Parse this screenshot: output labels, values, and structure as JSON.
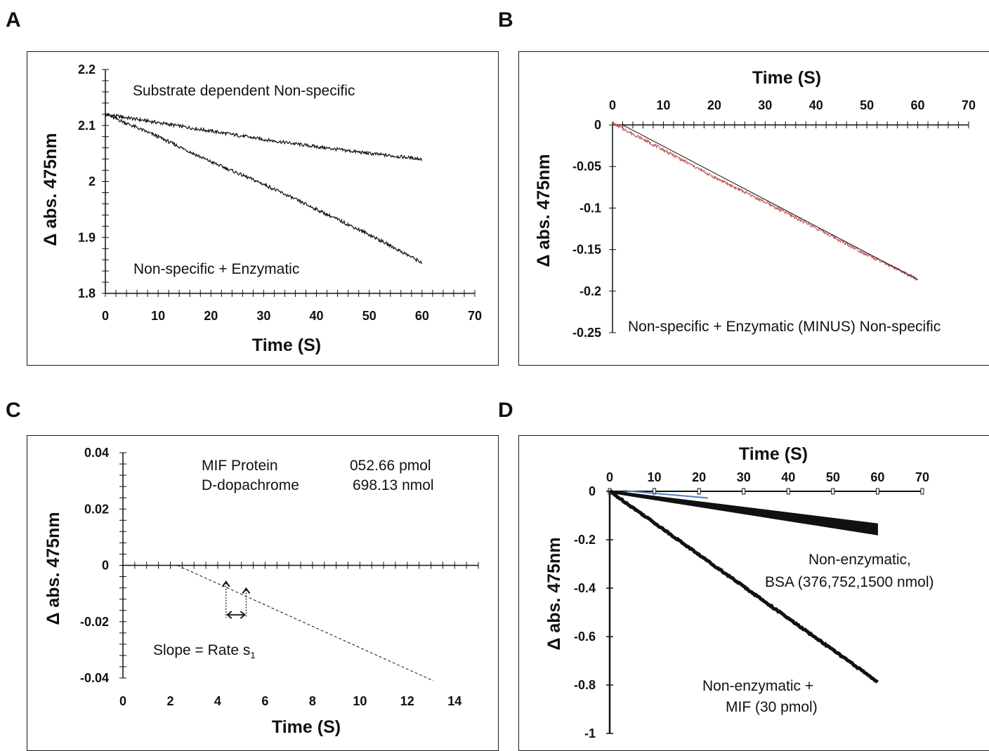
{
  "panels": {
    "A": {
      "letter": "A"
    },
    "B": {
      "letter": "B"
    },
    "C": {
      "letter": "C"
    },
    "D": {
      "letter": "D"
    }
  },
  "chart_data": [
    {
      "panel": "A",
      "type": "line",
      "xlabel": "Time (S)",
      "ylabel": "Δ abs. 475nm",
      "xlim": [
        0,
        70
      ],
      "ylim": [
        1.8,
        2.2
      ],
      "xticks": [
        0,
        10,
        20,
        30,
        40,
        50,
        60,
        70
      ],
      "yticks": [
        1.8,
        1.9,
        2,
        2.1,
        2.2
      ],
      "x_minor_step": 2,
      "y_minor_step": 0.02,
      "annotations": [
        "Substrate dependent Non-specific",
        "Non-specific + Enzymatic"
      ],
      "series": [
        {
          "x": [
            0,
            10,
            20,
            30,
            40,
            50,
            60
          ],
          "values": [
            2.12,
            2.105,
            2.09,
            2.075,
            2.062,
            2.05,
            2.04
          ],
          "color": "#111111"
        },
        {
          "x": [
            0,
            10,
            20,
            30,
            40,
            50,
            60
          ],
          "values": [
            2.12,
            2.08,
            2.035,
            1.995,
            1.95,
            1.905,
            1.855
          ],
          "color": "#111111"
        }
      ]
    },
    {
      "panel": "B",
      "type": "line",
      "xlabel": "Time (S)",
      "ylabel": "Δ abs. 475nm",
      "xlim": [
        0,
        70
      ],
      "ylim": [
        -0.25,
        0
      ],
      "xticks": [
        0,
        10,
        20,
        30,
        40,
        50,
        60,
        70
      ],
      "yticks": [
        0,
        -0.05,
        -0.1,
        -0.15,
        -0.2,
        -0.25
      ],
      "x_minor_step": 2,
      "annotations": [
        "Non-specific + Enzymatic (MINUS) Non-specific"
      ],
      "series": [
        {
          "x": [
            0,
            10,
            20,
            30,
            40,
            50,
            60
          ],
          "values": [
            0.002,
            -0.03,
            -0.063,
            -0.093,
            -0.124,
            -0.156,
            -0.186
          ],
          "color": "#c0504d"
        }
      ],
      "fit_line": {
        "x": [
          2,
          60
        ],
        "values": [
          0,
          -0.186
        ],
        "color": "#111111"
      }
    },
    {
      "panel": "C",
      "type": "line",
      "xlabel": "Time (S)",
      "ylabel": "Δ abs. 475nm",
      "xlim": [
        0,
        15
      ],
      "ylim": [
        -0.04,
        0.04
      ],
      "xticks": [
        0,
        2,
        4,
        6,
        8,
        10,
        12,
        14
      ],
      "yticks": [
        0.04,
        0.02,
        0,
        -0.02,
        -0.04
      ],
      "x_minor_step": 0.5,
      "y_minor_step": 0.004,
      "annotations": [
        "MIF Protein",
        "052.66 pmol",
        "D-dopachrome",
        "698.13 nmol",
        "Slope = Rate s",
        "1"
      ],
      "dashed_line": {
        "x": [
          2.3,
          13.1
        ],
        "values": [
          0,
          -0.041
        ]
      },
      "markers": {
        "arrow_x": [
          4.35,
          5.2
        ],
        "arrow_y": [
          -0.0088,
          -0.0112
        ]
      }
    },
    {
      "panel": "D",
      "type": "line",
      "xlabel": "Time (S)",
      "ylabel": "Δ abs. 475nm",
      "xlim": [
        0,
        70
      ],
      "ylim": [
        -1,
        0
      ],
      "xticks": [
        0,
        10,
        20,
        30,
        40,
        50,
        60,
        70
      ],
      "yticks": [
        0,
        -0.2,
        -0.4,
        -0.6,
        -0.8,
        -1
      ],
      "annotations": [
        "Non-enzymatic,",
        "BSA (376,752,1500 nmol)",
        "Non-enzymatic +",
        "MIF (30 pmol)"
      ],
      "series": [
        {
          "x": [
            0,
            10,
            20,
            30,
            40,
            50,
            60
          ],
          "values": [
            0,
            -0.027,
            -0.053,
            -0.08,
            -0.107,
            -0.133,
            -0.16
          ],
          "color": "#111111"
        },
        {
          "x": [
            0,
            10,
            20,
            30,
            40,
            50,
            60
          ],
          "values": [
            0,
            -0.13,
            -0.262,
            -0.393,
            -0.525,
            -0.655,
            -0.787
          ],
          "color": "#111111"
        }
      ]
    }
  ]
}
